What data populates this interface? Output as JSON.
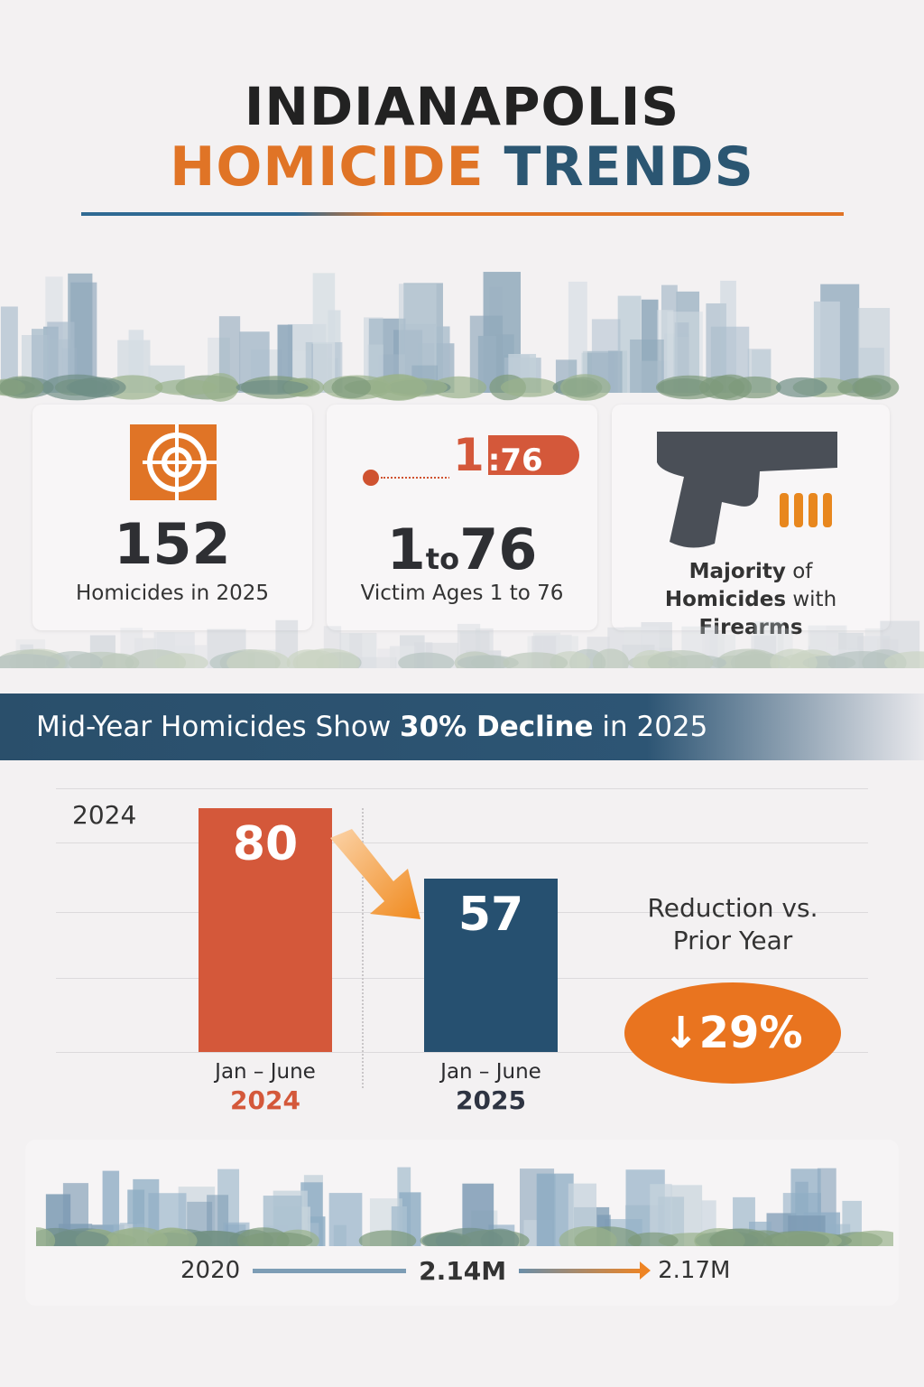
{
  "title": {
    "line1": "INDIANAPOLIS",
    "line2a": "HOMICIDE",
    "line2b": "TRENDS"
  },
  "colors": {
    "orange": "#e07426",
    "navy": "#2b5672",
    "red_bar": "#d4583a",
    "blue_bar": "#265070"
  },
  "cards": [
    {
      "icon": "target-icon",
      "value": "152",
      "label": "Homicides in 2025"
    },
    {
      "icon": "age-range-icon",
      "badge_a": "1",
      "badge_b": ":76",
      "value_a": "1",
      "value_to": "to",
      "value_b": "76",
      "label": "Victim Ages 1 to 76"
    },
    {
      "icon": "handgun-icon",
      "label_a": "Majority",
      "label_b": "of",
      "label_c": "Homicides",
      "label_d": "with",
      "label_e": "Firearms"
    }
  ],
  "banner": {
    "a": "Mid-Year Homicides Show ",
    "b": "30% Decline",
    "c": " in 2025"
  },
  "chart_data": {
    "type": "bar",
    "axis_label": "2024",
    "categories": [
      {
        "period": "Jan – June",
        "year": "2024"
      },
      {
        "period": "Jan – June",
        "year": "2025"
      }
    ],
    "values": [
      80,
      57
    ],
    "value_labels": [
      "80",
      "57"
    ],
    "ylim": [
      0,
      80
    ],
    "grid": true
  },
  "reduction": {
    "label_a": "Reduction vs.",
    "label_b": "Prior Year",
    "value": "↓29%"
  },
  "population": {
    "start": "2020",
    "mid": "2.14M",
    "end": "2.17M"
  }
}
